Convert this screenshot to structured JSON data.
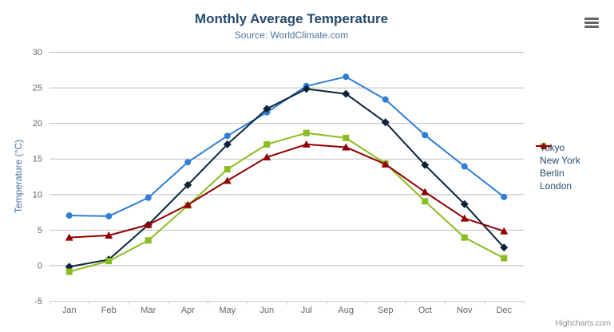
{
  "credits_label": "Highcharts.com",
  "icons": {
    "context_menu": "hamburger-icon"
  },
  "palette": {
    "title_color": "#274b6d",
    "subtitle_color": "#4d759e",
    "axis_title_color": "#4572a7",
    "tick_label_color": "#666666",
    "gridline_color": "#c0c0c0",
    "axis_line_color": "#c0d0e0",
    "legend_text_color": "#274b6d",
    "credits_color": "#909090"
  },
  "chart_data": {
    "type": "line",
    "title": "Monthly Average Temperature",
    "subtitle": "Source: WorldClimate.com",
    "categories": [
      "Jan",
      "Feb",
      "Mar",
      "Apr",
      "May",
      "Jun",
      "Jul",
      "Aug",
      "Sep",
      "Oct",
      "Nov",
      "Dec"
    ],
    "series": [
      {
        "name": "Tokyo",
        "color": "#2f7ed8",
        "marker": "circle",
        "values": [
          7.0,
          6.9,
          9.5,
          14.5,
          18.2,
          21.5,
          25.2,
          26.5,
          23.3,
          18.3,
          13.9,
          9.6
        ]
      },
      {
        "name": "New York",
        "color": "#0d233a",
        "marker": "diamond",
        "values": [
          -0.2,
          0.8,
          5.7,
          11.3,
          17.0,
          22.0,
          24.8,
          24.1,
          20.1,
          14.1,
          8.6,
          2.5
        ]
      },
      {
        "name": "Berlin",
        "color": "#8bbc21",
        "marker": "square",
        "values": [
          -0.9,
          0.6,
          3.5,
          8.4,
          13.5,
          17.0,
          18.6,
          17.9,
          14.3,
          9.0,
          3.9,
          1.0
        ]
      },
      {
        "name": "London",
        "color": "#910000",
        "marker": "triangle",
        "values": [
          3.9,
          4.2,
          5.7,
          8.5,
          11.9,
          15.2,
          17.0,
          16.6,
          14.2,
          10.3,
          6.6,
          4.8
        ]
      }
    ],
    "xlabel": "",
    "ylabel": "Temperature (°C)",
    "ylim": [
      -5,
      30
    ],
    "yticks": [
      -5,
      0,
      5,
      10,
      15,
      20,
      25,
      30
    ],
    "grid": true,
    "legend_position": "right"
  }
}
